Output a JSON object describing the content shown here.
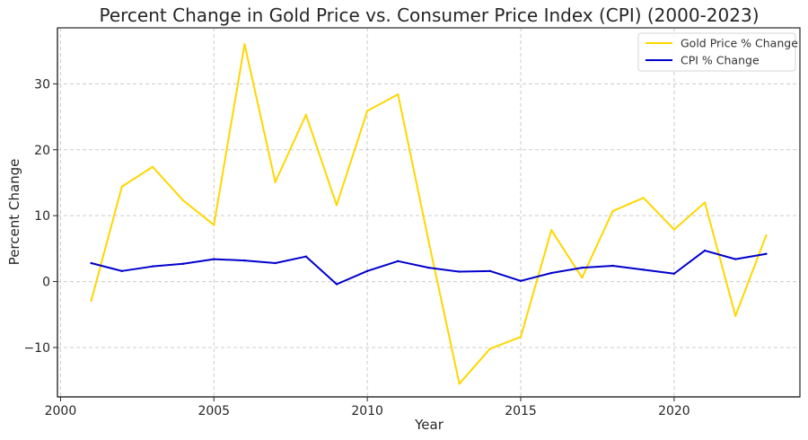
{
  "chart_data": {
    "type": "line",
    "title": "Percent Change in Gold Price vs. Consumer Price Index (CPI) (2000-2023)",
    "xlabel": "Year",
    "ylabel": "Percent Change",
    "xlim": [
      1999.9,
      2024.1
    ],
    "ylim": [
      -17.5,
      38.5
    ],
    "xticks": [
      2000,
      2005,
      2010,
      2015,
      2020
    ],
    "yticks": [
      -10,
      0,
      10,
      20,
      30
    ],
    "ytick_labels": [
      "−10",
      "0",
      "10",
      "20",
      "30"
    ],
    "grid": true,
    "legend_position": "top-right",
    "x": [
      2001,
      2002,
      2003,
      2004,
      2005,
      2006,
      2007,
      2008,
      2009,
      2010,
      2011,
      2012,
      2013,
      2014,
      2015,
      2016,
      2017,
      2018,
      2019,
      2020,
      2021,
      2022,
      2023
    ],
    "series": [
      {
        "name": "Gold Price % Change",
        "color": "#FFD700",
        "values": [
          -2.9,
          14.4,
          17.4,
          12.3,
          8.6,
          36.0,
          15.1,
          25.3,
          11.6,
          25.9,
          28.4,
          6.1,
          -15.5,
          -10.2,
          -8.4,
          7.8,
          0.6,
          10.7,
          12.7,
          7.9,
          12.0,
          -5.2,
          7.0
        ]
      },
      {
        "name": "CPI % Change",
        "color": "#0000CC",
        "values": [
          2.8,
          1.6,
          2.3,
          2.7,
          3.4,
          3.2,
          2.8,
          3.8,
          -0.4,
          1.6,
          3.1,
          2.1,
          1.5,
          1.6,
          0.1,
          1.3,
          2.1,
          2.4,
          1.8,
          1.2,
          4.7,
          3.4,
          4.2
        ]
      }
    ]
  }
}
